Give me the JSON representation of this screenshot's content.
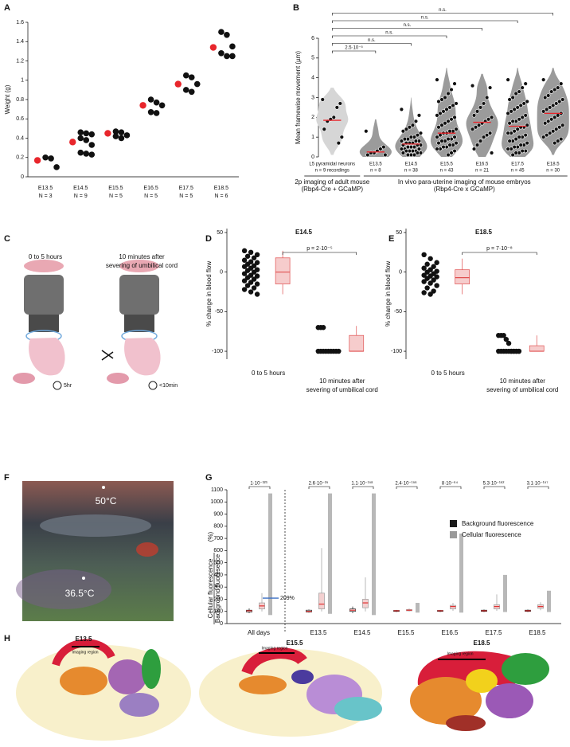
{
  "panels": [
    "A",
    "B",
    "C",
    "D",
    "E",
    "F",
    "G",
    "H"
  ],
  "panel_c": {
    "left": "0 to 5 hours",
    "right": [
      "10 minutes after",
      "severing of umbilical cord"
    ],
    "timer_left": "5hr",
    "timer_right": "<10min"
  },
  "panel_f": {
    "hot": "50°C",
    "cool": "36.5°C"
  },
  "panel_h": {
    "stages": [
      "E13.5",
      "E15.5",
      "E18.5"
    ],
    "region_label": "Imaging region"
  },
  "chart_data": [
    {
      "type": "strip",
      "ylabel": "Weight (g)",
      "ylim": [
        0,
        1.6
      ],
      "yticks": [
        0,
        0.2,
        0.4,
        0.6,
        0.8,
        1,
        1.2,
        1.4,
        1.6
      ],
      "categories": [
        "E13.5",
        "E14.5",
        "E15.5",
        "E16.5",
        "E17.5",
        "E18.5"
      ],
      "n_labels": [
        "N = 3",
        "N = 9",
        "N = 5",
        "N = 5",
        "N = 5",
        "N = 6"
      ],
      "mean_color": "#e8262c",
      "point_color": "#111111",
      "means": [
        0.17,
        0.36,
        0.45,
        0.74,
        0.96,
        1.34
      ],
      "points": [
        [
          0.2,
          0.19,
          0.1
        ],
        [
          0.46,
          0.45,
          0.44,
          0.4,
          0.38,
          0.33,
          0.25,
          0.24,
          0.23
        ],
        [
          0.47,
          0.46,
          0.43,
          0.42,
          0.4
        ],
        [
          0.8,
          0.77,
          0.74,
          0.67,
          0.66
        ],
        [
          1.05,
          1.03,
          0.96,
          0.9,
          0.88
        ],
        [
          1.5,
          1.47,
          1.35,
          1.28,
          1.25,
          1.25
        ]
      ]
    },
    {
      "type": "violin",
      "ylabel": "Mean framewise movement (µm)",
      "ylim": [
        0,
        6
      ],
      "yticks": [
        0,
        1,
        2,
        3,
        4,
        5,
        6
      ],
      "categories": [
        "L5 pyramidal neurons",
        "E13.5",
        "E14.5",
        "E15.5",
        "E16.5",
        "E17.5",
        "E18.5"
      ],
      "n_labels": [
        "n = 9 recordings",
        "n = 8",
        "n = 38",
        "n = 43",
        "n = 21",
        "n = 45",
        "n = 30"
      ],
      "groups": [
        [
          "2p imaging of adult mouse",
          "(Rbp4-Cre + GCaMP)"
        ],
        [
          "In vivo para-uterine imaging of mouse embryos",
          "(Rbp4-Cre x GCaMP)"
        ]
      ],
      "comparison_labels": [
        "2.5·10⁻⁵",
        "n.s.",
        "n.s.",
        "n.s.",
        "n.s.",
        "n.s."
      ],
      "colors": [
        "#d6d6d6",
        "#9b9b9b",
        "#9b9b9b",
        "#9b9b9b",
        "#9b9b9b",
        "#9b9b9b",
        "#9b9b9b"
      ],
      "median_color": "#e8262c",
      "medians": [
        1.85,
        0.25,
        0.65,
        1.2,
        1.75,
        1.55,
        2.2
      ],
      "values": [
        [
          2.9,
          2.7,
          2.5,
          2.0,
          1.9,
          1.8,
          1.4,
          1.0,
          0.7
        ],
        [
          1.3,
          0.5,
          0.4,
          0.3,
          0.2,
          0.2,
          0.1,
          0.1
        ],
        [
          2.4,
          2.1,
          1.8,
          1.6,
          1.5,
          1.4,
          1.3,
          1.2,
          1.1,
          1.0,
          1.0,
          0.9,
          0.9,
          0.8,
          0.8,
          0.8,
          0.7,
          0.7,
          0.7,
          0.6,
          0.6,
          0.6,
          0.5,
          0.5,
          0.5,
          0.4,
          0.4,
          0.4,
          0.3,
          0.3,
          0.3,
          0.3,
          0.2,
          0.2,
          0.2,
          0.1,
          0.1,
          0.1
        ],
        [
          3.9,
          3.7,
          3.4,
          3.2,
          3.0,
          2.9,
          2.8,
          2.7,
          2.6,
          2.5,
          2.4,
          2.3,
          2.2,
          2.1,
          2.0,
          1.9,
          1.8,
          1.7,
          1.6,
          1.5,
          1.4,
          1.3,
          1.3,
          1.2,
          1.2,
          1.1,
          1.0,
          1.0,
          0.9,
          0.9,
          0.8,
          0.8,
          0.7,
          0.7,
          0.6,
          0.6,
          0.5,
          0.5,
          0.4,
          0.4,
          0.3,
          0.2,
          0.1
        ],
        [
          3.6,
          3.5,
          3.0,
          2.7,
          2.5,
          2.3,
          2.1,
          2.0,
          1.9,
          1.8,
          1.7,
          1.6,
          1.5,
          1.4,
          1.2,
          1.1,
          1.0,
          0.8,
          0.6,
          0.4,
          0.2
        ],
        [
          3.9,
          3.7,
          3.5,
          3.3,
          3.2,
          3.0,
          2.9,
          2.8,
          2.7,
          2.6,
          2.5,
          2.4,
          2.3,
          2.2,
          2.1,
          2.0,
          1.9,
          1.8,
          1.8,
          1.7,
          1.6,
          1.5,
          1.5,
          1.4,
          1.3,
          1.2,
          1.2,
          1.1,
          1.0,
          1.0,
          0.9,
          0.8,
          0.8,
          0.7,
          0.6,
          0.6,
          0.5,
          0.5,
          0.4,
          0.4,
          0.3,
          0.3,
          0.2,
          0.2,
          0.1
        ],
        [
          3.9,
          3.7,
          3.5,
          3.4,
          3.3,
          3.1,
          3.0,
          2.9,
          2.8,
          2.7,
          2.6,
          2.5,
          2.4,
          2.3,
          2.2,
          2.1,
          2.0,
          1.9,
          1.8,
          1.7,
          1.6,
          1.5,
          1.4,
          1.3,
          1.2,
          1.1,
          1.0,
          0.9,
          0.8,
          0.7
        ]
      ]
    },
    {
      "type": "strip_box",
      "title": "E14.5",
      "ylabel": "% change in blood flow",
      "ylim": [
        -110,
        55
      ],
      "yticks": [
        -100,
        -50,
        0,
        50
      ],
      "categories": [
        [
          "0 to 5 hours"
        ],
        [
          "10 minutes after",
          "severing of umbilical cord"
        ]
      ],
      "p_label": "p = 2·10⁻⁵",
      "point_color": "#111111",
      "box_color": "#f6cccc",
      "median_color": "#e05050",
      "points": [
        [
          27,
          25,
          22,
          20,
          18,
          15,
          13,
          12,
          10,
          8,
          7,
          5,
          3,
          2,
          0,
          -2,
          -4,
          -5,
          -7,
          -9,
          -11,
          -13,
          -15,
          -17,
          -20,
          -22,
          -25,
          -28
        ],
        [
          -70,
          -70,
          -70,
          -100,
          -100,
          -100,
          -100,
          -100,
          -100,
          -100,
          -100,
          -100
        ]
      ],
      "boxes": [
        {
          "min": -28,
          "q1": -15,
          "median": 0,
          "q3": 18,
          "max": 27
        },
        {
          "min": -100,
          "q1": -100,
          "median": -100,
          "q3": -80,
          "max": -68
        }
      ]
    },
    {
      "type": "strip_box",
      "title": "E18.5",
      "ylabel": "% change in blood flow",
      "ylim": [
        -110,
        55
      ],
      "yticks": [
        -100,
        -50,
        0,
        50
      ],
      "categories": [
        [
          "0 to 5 hours"
        ],
        [
          "10 minutes after",
          "severing of umbilical cord"
        ]
      ],
      "p_label": "p = 7·10⁻⁸",
      "point_color": "#111111",
      "box_color": "#f6cccc",
      "median_color": "#e05050",
      "points": [
        [
          22,
          17,
          12,
          10,
          7,
          5,
          3,
          1,
          0,
          -2,
          -4,
          -5,
          -6,
          -8,
          -10,
          -12,
          -14,
          -17,
          -20,
          -24,
          -26,
          -28
        ],
        [
          -80,
          -80,
          -80,
          -85,
          -90,
          -100,
          -100,
          -100,
          -100,
          -100,
          -100,
          -100,
          -100,
          -100,
          -100,
          -100,
          -100,
          -100
        ]
      ],
      "boxes": [
        {
          "min": -28,
          "q1": -15,
          "median": -7,
          "q3": 3,
          "max": 17
        },
        {
          "min": -100,
          "q1": -100,
          "median": -100,
          "q3": -93,
          "max": -80
        }
      ]
    },
    {
      "type": "box_pair",
      "ylabel": [
        "Cellular fluorescence",
        "Background fluoresence"
      ],
      "ylabel_unit": "(%)",
      "ylim": [
        0,
        1100
      ],
      "yticks": [
        0,
        100,
        200,
        300,
        400,
        500,
        600,
        700,
        800,
        900,
        1000,
        1100
      ],
      "categories": [
        "All days",
        "E13.5",
        "E14.5",
        "E15.5",
        "E16.5",
        "E17.5",
        "E18.5"
      ],
      "p_labels": [
        "1·10⁻³²³",
        "2.6·10⁻²⁵",
        "1.1·10⁻¹⁵⁸",
        "2.4·10⁻¹⁵⁶",
        "8·10⁻⁶⁴",
        "5.3·10⁻¹⁶²",
        "3.1·10⁻¹⁵⁷"
      ],
      "box_color": "#f3d0d0",
      "median_color": "#e03030",
      "annotation": {
        "value": 209,
        "label": "209%",
        "color": "#3a6fc4"
      },
      "series": [
        {
          "name": "Background fluorescence",
          "color": "#1a1a1a",
          "boxes": [
            {
              "min": 85,
              "q1": 95,
              "median": 105,
              "q3": 110,
              "max": 125
            },
            {
              "min": 90,
              "q1": 95,
              "median": 100,
              "q3": 110,
              "max": 115
            },
            {
              "min": 85,
              "q1": 100,
              "median": 110,
              "q3": 120,
              "max": 140
            },
            {
              "min": 95,
              "q1": 100,
              "median": 105,
              "q3": 108,
              "max": 112
            },
            {
              "min": 95,
              "q1": 100,
              "median": 105,
              "q3": 108,
              "max": 112
            },
            {
              "min": 95,
              "q1": 100,
              "median": 105,
              "q3": 110,
              "max": 115
            },
            {
              "min": 95,
              "q1": 100,
              "median": 105,
              "q3": 110,
              "max": 115
            }
          ]
        },
        {
          "name": "Cellular fluorescence",
          "color": "#9a9a9a",
          "boxes": [
            {
              "min": 100,
              "q1": 120,
              "median": 145,
              "q3": 170,
              "max": 250
            },
            {
              "min": 100,
              "q1": 120,
              "median": 160,
              "q3": 250,
              "max": 620
            },
            {
              "min": 100,
              "q1": 130,
              "median": 170,
              "q3": 200,
              "max": 380
            },
            {
              "min": 100,
              "q1": 105,
              "median": 110,
              "q3": 115,
              "max": 125
            },
            {
              "min": 105,
              "q1": 120,
              "median": 140,
              "q3": 150,
              "max": 170
            },
            {
              "min": 105,
              "q1": 120,
              "median": 140,
              "q3": 155,
              "max": 240
            },
            {
              "min": 110,
              "q1": 125,
              "median": 140,
              "q3": 155,
              "max": 175
            }
          ],
          "spread": [
            [
              70,
              1070
            ],
            [
              80,
              1070
            ],
            [
              70,
              1070
            ],
            [
              90,
              170
            ],
            [
              90,
              740
            ],
            [
              95,
              400
            ],
            [
              95,
              270
            ]
          ]
        }
      ]
    }
  ]
}
